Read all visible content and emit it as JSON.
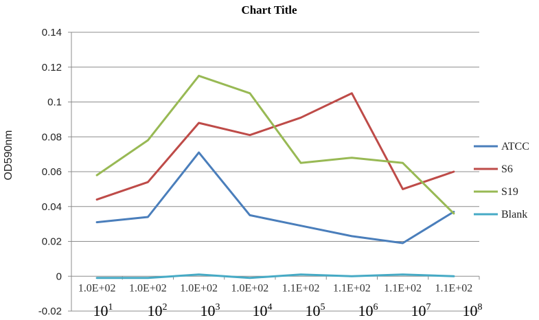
{
  "chart_data": {
    "type": "line",
    "title": "Chart Title",
    "ylabel": "OD590nm",
    "ylim": [
      -0.02,
      0.14
    ],
    "yticks": [
      "-0.02",
      "0",
      "0.02",
      "0.04",
      "0.06",
      "0.08",
      "0.1",
      "0.12",
      "0.14"
    ],
    "categories": [
      "1.0E+02",
      "1.0E+02",
      "1.0E+02",
      "1.0E+02",
      "1.1E+02",
      "1.1E+02",
      "1.1E+02",
      "1.1E+02"
    ],
    "power_labels": [
      {
        "base": "10",
        "exp": "1"
      },
      {
        "base": "10",
        "exp": "2"
      },
      {
        "base": "10",
        "exp": "3"
      },
      {
        "base": "10",
        "exp": "4"
      },
      {
        "base": "10",
        "exp": "5"
      },
      {
        "base": "10",
        "exp": "6"
      },
      {
        "base": "10",
        "exp": "7"
      },
      {
        "base": "10",
        "exp": "8"
      }
    ],
    "grid": true,
    "legend_position": "right",
    "series": [
      {
        "name": "ATCC",
        "color": "#4a7ebb",
        "values": [
          0.031,
          0.034,
          0.071,
          0.035,
          0.029,
          0.023,
          0.019,
          0.037
        ]
      },
      {
        "name": "S6",
        "color": "#be4b48",
        "values": [
          0.044,
          0.054,
          0.088,
          0.081,
          0.091,
          0.105,
          0.05,
          0.06
        ]
      },
      {
        "name": "S19",
        "color": "#98b954",
        "values": [
          0.058,
          0.078,
          0.115,
          0.105,
          0.065,
          0.068,
          0.065,
          0.036
        ]
      },
      {
        "name": "Blank",
        "color": "#46aac5",
        "values": [
          -0.001,
          -0.001,
          0.001,
          -0.001,
          0.001,
          0.0,
          0.001,
          0.0
        ]
      }
    ]
  }
}
